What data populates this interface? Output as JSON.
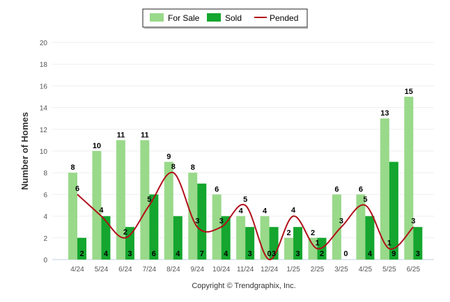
{
  "colors": {
    "for_sale": "#99d98a",
    "sold": "#14a62e",
    "pended": "#b0101a",
    "grid": "#eeeeee",
    "axis": "#c0d0e0",
    "text": "#555555",
    "label": "#000000"
  },
  "legend": {
    "items": [
      {
        "label": "For Sale",
        "kind": "bar",
        "color": "#99d98a"
      },
      {
        "label": "Sold",
        "kind": "bar",
        "color": "#14a62e"
      },
      {
        "label": "Pended",
        "kind": "line",
        "color": "#b0101a"
      }
    ]
  },
  "copyright": "Copyright © Trendgraphix, Inc.",
  "chart_data": {
    "type": "bar",
    "ylabel": "Number of Homes",
    "xlabel": "",
    "ylim": [
      0,
      20
    ],
    "yticks": [
      0,
      2,
      4,
      6,
      8,
      10,
      12,
      14,
      16,
      18,
      20
    ],
    "grid": true,
    "legend_position": "top-center",
    "categories": [
      "4/24",
      "5/24",
      "6/24",
      "7/24",
      "8/24",
      "9/24",
      "10/24",
      "11/24",
      "12/24",
      "1/25",
      "2/25",
      "3/25",
      "4/25",
      "5/25",
      "6/25"
    ],
    "series": [
      {
        "name": "For Sale",
        "type": "bar",
        "values": [
          8,
          10,
          11,
          11,
          9,
          8,
          6,
          4,
          4,
          2,
          2,
          6,
          6,
          13,
          15
        ]
      },
      {
        "name": "Sold",
        "type": "bar",
        "values": [
          2,
          4,
          3,
          6,
          4,
          7,
          4,
          3,
          3,
          3,
          2,
          0,
          4,
          9,
          3
        ]
      },
      {
        "name": "Pended",
        "type": "line",
        "values": [
          6,
          4,
          2,
          5,
          8,
          3,
          3,
          5,
          0,
          4,
          1,
          3,
          5,
          1,
          3
        ]
      }
    ]
  }
}
